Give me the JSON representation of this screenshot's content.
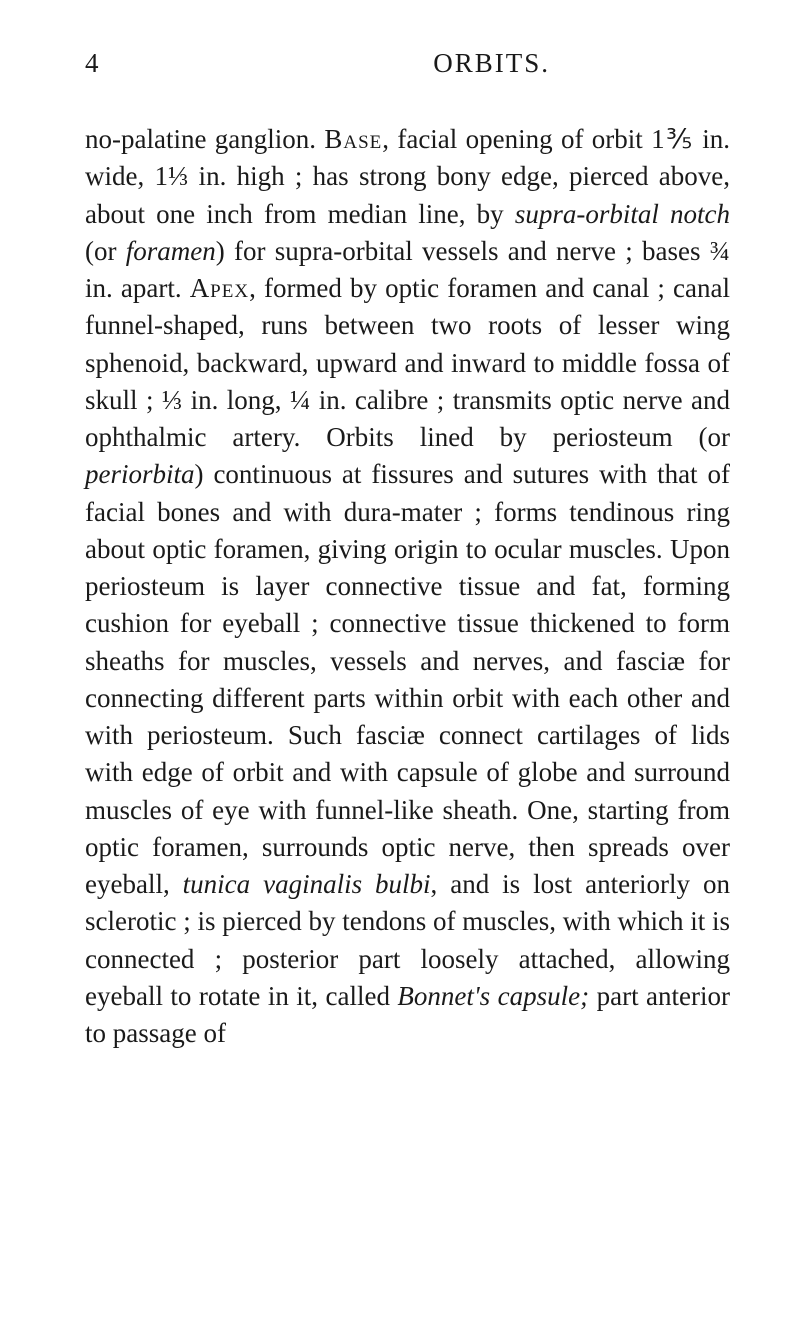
{
  "header": {
    "page_number": "4",
    "title": "ORBITS."
  },
  "paragraph": {
    "segments": [
      {
        "text": "no-palatine ganglion. ",
        "style": "normal"
      },
      {
        "text": "Base",
        "style": "smallcaps"
      },
      {
        "text": ", facial opening of orbit 1⅗ in. wide, 1⅓ in. high ; has strong bony edge, pierced above, about one inch from median line, by ",
        "style": "normal"
      },
      {
        "text": "supra-orbital notch",
        "style": "italic"
      },
      {
        "text": " (or ",
        "style": "normal"
      },
      {
        "text": "foramen",
        "style": "italic"
      },
      {
        "text": ") for supra-orbital vessels and nerve ; bases ¾ in. apart. ",
        "style": "normal"
      },
      {
        "text": "Apex",
        "style": "smallcaps"
      },
      {
        "text": ", formed by optic foramen and canal ; canal funnel-shaped, runs between two roots of lesser wing sphenoid, backward, upward and inward to middle fossa of skull ; ⅓ in. long, ¼ in. calibre ; transmits optic nerve and ophthalmic artery. Orbits lined by periosteum (or ",
        "style": "normal"
      },
      {
        "text": "periorbita",
        "style": "italic"
      },
      {
        "text": ") continuous at fissures and sutures with that of facial bones and with dura-mater ; forms tendinous ring about optic foramen, giving origin to ocular muscles. Upon periosteum is layer connective tissue and fat, forming cushion for eyeball ; connective tissue thickened to form sheaths for muscles, vessels and nerves, and fasciæ for connecting different parts within orbit with each other and with periosteum. Such fasciæ connect cartilages of lids with edge of orbit and with capsule of globe and surround muscles of eye with funnel-like sheath. One, starting from optic foramen, surrounds optic nerve, then spreads over eyeball, ",
        "style": "normal"
      },
      {
        "text": "tunica vaginalis bulbi",
        "style": "italic"
      },
      {
        "text": ", and is lost anteriorly on sclerotic ; is pierced by tendons of muscles, with which it is connected ; posterior part loosely attached, allowing eyeball to rotate in it, called ",
        "style": "normal"
      },
      {
        "text": "Bonnet's capsule;",
        "style": "italic"
      },
      {
        "text": " part anterior to passage of",
        "style": "normal"
      }
    ]
  },
  "styles": {
    "body_bg": "#ffffff",
    "text_color": "#1a1a1a",
    "font_size_header": 27,
    "font_size_body": 27,
    "line_height": 1.38
  }
}
